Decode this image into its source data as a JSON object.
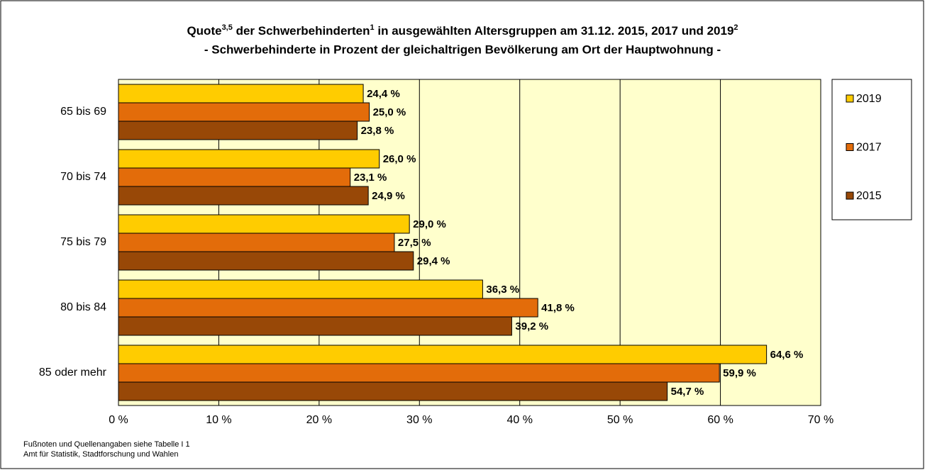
{
  "chart_data": {
    "type": "barh",
    "title": [
      {
        "text": "Quote"
      },
      {
        "sup": "3,5"
      },
      {
        "text": " der Schwerbehinderten"
      },
      {
        "sup": "1"
      },
      {
        "text": " in ausgewählten Altersgruppen am 31.12. 2015, 2017 und 2019"
      },
      {
        "sup": "2"
      }
    ],
    "subtitle": "- Schwerbehinderte in Prozent der gleichaltrigen Bevölkerung am Ort der Hauptwohnung -",
    "categories": [
      "65 bis 69",
      "70 bis 74",
      "75 bis 79",
      "80 bis 84",
      "85 oder mehr"
    ],
    "series": [
      {
        "name": "2019",
        "color": "#ffcc00",
        "values": [
          24.4,
          26.0,
          29.0,
          36.3,
          64.6
        ],
        "value_labels": [
          "24,4 %",
          "26,0 %",
          "29,0 %",
          "36,3 %",
          "64,6 %"
        ]
      },
      {
        "name": "2017",
        "color": "#e36c0a",
        "values": [
          25.0,
          23.1,
          27.5,
          41.8,
          59.9
        ],
        "value_labels": [
          "25,0 %",
          "23,1 %",
          "27,5 %",
          "41,8 %",
          "59,9 %"
        ]
      },
      {
        "name": "2015",
        "color": "#984807",
        "values": [
          23.8,
          24.9,
          29.4,
          39.2,
          54.7
        ],
        "value_labels": [
          "23,8 %",
          "24,9 %",
          "29,4 %",
          "39,2 %",
          "54,7 %"
        ]
      }
    ],
    "xlim": [
      0,
      70
    ],
    "xticks": [
      {
        "value": 0,
        "label": "0 %"
      },
      {
        "value": 10,
        "label": "10 %"
      },
      {
        "value": 20,
        "label": "20 %"
      },
      {
        "value": 30,
        "label": "30 %"
      },
      {
        "value": 40,
        "label": "40 %"
      },
      {
        "value": 50,
        "label": "50 %"
      },
      {
        "value": 60,
        "label": "60 %"
      },
      {
        "value": 70,
        "label": "70 %"
      }
    ],
    "grid": true,
    "legend": "right",
    "footnotes": [
      "Fußnoten und Quellenangaben siehe Tabelle I 1",
      "Amt für Statistik, Stadtforschung und Wahlen"
    ]
  }
}
